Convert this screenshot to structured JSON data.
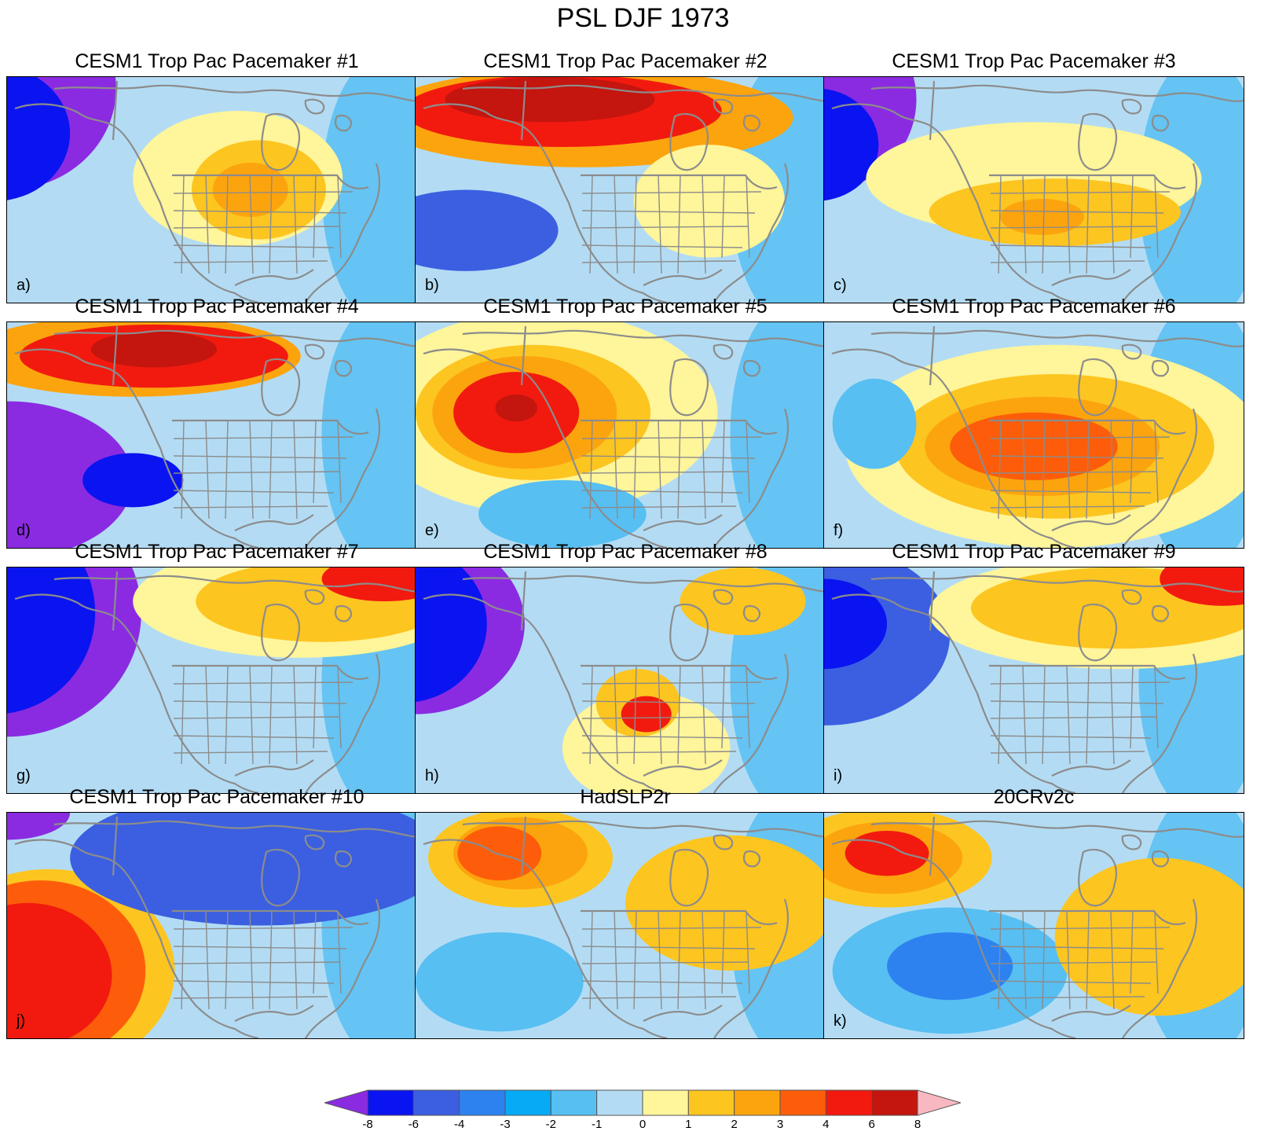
{
  "title": "PSL DJF 1973",
  "palette": {
    "lt_-8": "#8a2be2",
    "-8_-6": "#0a14f0",
    "-6_-4": "#3b5fe0",
    "-4_-3": "#2d82f0",
    "-3_-2": "#06aaf5",
    "-2_-1": "#57bff2",
    "-1_0": "#b3dcf4",
    "0_1": "#fff59a",
    "1_2": "#fdc520",
    "2_3": "#fca40e",
    "3_4": "#fd5d0a",
    "4_6": "#f21a0f",
    "6_8": "#c4150f",
    "gt_8": "#f8b8c2",
    "outline": "#8c8c8c"
  },
  "colorbar": {
    "ticks": [
      "-8",
      "-6",
      "-4",
      "-3",
      "-2",
      "-1",
      "0",
      "1",
      "2",
      "3",
      "4",
      "6",
      "8"
    ],
    "colors": [
      "#0a14f0",
      "#3b5fe0",
      "#2d82f0",
      "#06aaf5",
      "#57bff2",
      "#b3dcf4",
      "#fff59a",
      "#fdc520",
      "#fca40e",
      "#fd5d0a",
      "#f21a0f",
      "#c4150f"
    ],
    "low_arrow_color": "#8a2be2",
    "high_arrow_color": "#f8b8c2"
  },
  "panels": [
    {
      "title": "CESM1 Trop Pac Pacemaker #1",
      "label": "a)",
      "pattern": "low-west",
      "blobs": [
        [
          "#8a2be2",
          0,
          5,
          26,
          45
        ],
        [
          "#0a14f0",
          -3,
          25,
          18,
          30
        ],
        [
          "#fff59a",
          55,
          45,
          25,
          30
        ],
        [
          "#fdc520",
          60,
          50,
          16,
          22
        ],
        [
          "#fca40e",
          58,
          50,
          9,
          12
        ]
      ]
    },
    {
      "title": "CESM1 Trop Pac Pacemaker #2",
      "label": "b)",
      "pattern": "high-north",
      "blobs": [
        [
          "#3b5fe0",
          12,
          68,
          22,
          18
        ],
        [
          "#fca40e",
          40,
          18,
          50,
          22
        ],
        [
          "#f21a0f",
          35,
          15,
          38,
          16
        ],
        [
          "#c4150f",
          32,
          10,
          25,
          10
        ],
        [
          "#fff59a",
          70,
          55,
          18,
          25
        ]
      ]
    },
    {
      "title": "CESM1 Trop Pac Pacemaker #3",
      "label": "c)",
      "pattern": "low-west",
      "blobs": [
        [
          "#8a2be2",
          0,
          10,
          22,
          40
        ],
        [
          "#0a14f0",
          -2,
          30,
          15,
          25
        ],
        [
          "#fff59a",
          50,
          45,
          40,
          25
        ],
        [
          "#fdc520",
          55,
          60,
          30,
          15
        ],
        [
          "#fca40e",
          52,
          62,
          10,
          8
        ]
      ]
    },
    {
      "title": "CESM1 Trop Pac Pacemaker #4",
      "label": "d)",
      "pattern": "dipole",
      "blobs": [
        [
          "#8a2be2",
          0,
          70,
          30,
          35
        ],
        [
          "#0a14f0",
          30,
          70,
          12,
          12
        ],
        [
          "#fca40e",
          30,
          15,
          40,
          18
        ],
        [
          "#f21a0f",
          35,
          15,
          32,
          14
        ],
        [
          "#c4150f",
          35,
          12,
          15,
          8
        ]
      ]
    },
    {
      "title": "CESM1 Trop Pac Pacemaker #5",
      "label": "e)",
      "pattern": "high-center",
      "blobs": [
        [
          "#fff59a",
          30,
          40,
          42,
          45
        ],
        [
          "#fdc520",
          28,
          40,
          28,
          30
        ],
        [
          "#fca40e",
          26,
          40,
          22,
          25
        ],
        [
          "#f21a0f",
          24,
          40,
          15,
          18
        ],
        [
          "#c4150f",
          24,
          38,
          5,
          6
        ],
        [
          "#57bff2",
          35,
          85,
          20,
          15
        ]
      ]
    },
    {
      "title": "CESM1 Trop Pac Pacemaker #6",
      "label": "f)",
      "pattern": "high-center",
      "blobs": [
        [
          "#fff59a",
          55,
          55,
          50,
          45
        ],
        [
          "#fdc520",
          55,
          55,
          38,
          32
        ],
        [
          "#fca40e",
          52,
          55,
          28,
          22
        ],
        [
          "#fd5d0a",
          50,
          55,
          20,
          15
        ],
        [
          "#57bff2",
          12,
          45,
          10,
          20
        ]
      ]
    },
    {
      "title": "CESM1 Trop Pac Pacemaker #7",
      "label": "g)",
      "pattern": "low-west",
      "blobs": [
        [
          "#8a2be2",
          0,
          20,
          32,
          55
        ],
        [
          "#0a14f0",
          -3,
          20,
          24,
          45
        ],
        [
          "#fff59a",
          70,
          15,
          40,
          25
        ],
        [
          "#fdc520",
          75,
          15,
          30,
          18
        ],
        [
          "#f21a0f",
          90,
          5,
          15,
          10
        ]
      ]
    },
    {
      "title": "CESM1 Trop Pac Pacemaker #8",
      "label": "h)",
      "pattern": "low-west",
      "blobs": [
        [
          "#8a2be2",
          0,
          25,
          26,
          40
        ],
        [
          "#0a14f0",
          -3,
          25,
          20,
          35
        ],
        [
          "#fff59a",
          55,
          80,
          20,
          25
        ],
        [
          "#fdc520",
          53,
          60,
          10,
          15
        ],
        [
          "#f21a0f",
          55,
          65,
          6,
          8
        ],
        [
          "#fdc520",
          78,
          15,
          15,
          15
        ]
      ]
    },
    {
      "title": "CESM1 Trop Pac Pacemaker #9",
      "label": "i)",
      "pattern": "low-west",
      "blobs": [
        [
          "#3b5fe0",
          0,
          30,
          30,
          40
        ],
        [
          "#0a14f0",
          0,
          25,
          15,
          20
        ],
        [
          "#fff59a",
          70,
          20,
          45,
          25
        ],
        [
          "#fdc520",
          70,
          18,
          35,
          18
        ],
        [
          "#f21a0f",
          95,
          5,
          15,
          12
        ]
      ]
    },
    {
      "title": "CESM1 Trop Pac Pacemaker #10",
      "label": "j)",
      "pattern": "high-southwest",
      "blobs": [
        [
          "#fdc520",
          10,
          70,
          30,
          45
        ],
        [
          "#fd5d0a",
          8,
          70,
          25,
          40
        ],
        [
          "#f21a0f",
          5,
          72,
          20,
          32
        ],
        [
          "#3b5fe0",
          60,
          20,
          45,
          30
        ],
        [
          "#8a2be2",
          0,
          0,
          15,
          12
        ]
      ]
    },
    {
      "title": "HadSLP2r",
      "label": "",
      "pattern": "high-northwest",
      "blobs": [
        [
          "#fdc520",
          25,
          20,
          22,
          22
        ],
        [
          "#fca40e",
          25,
          18,
          16,
          16
        ],
        [
          "#fd5d0a",
          20,
          18,
          10,
          12
        ],
        [
          "#57bff2",
          20,
          75,
          20,
          22
        ],
        [
          "#fdc520",
          75,
          40,
          25,
          30
        ]
      ]
    },
    {
      "title": "20CRv2c",
      "label": "k)",
      "pattern": "high-northwest",
      "blobs": [
        [
          "#fdc520",
          15,
          20,
          25,
          22
        ],
        [
          "#fca40e",
          15,
          20,
          18,
          16
        ],
        [
          "#f21a0f",
          15,
          18,
          10,
          10
        ],
        [
          "#57bff2",
          30,
          70,
          28,
          28
        ],
        [
          "#2d82f0",
          30,
          68,
          15,
          15
        ],
        [
          "#fdc520",
          80,
          55,
          25,
          35
        ]
      ]
    }
  ]
}
